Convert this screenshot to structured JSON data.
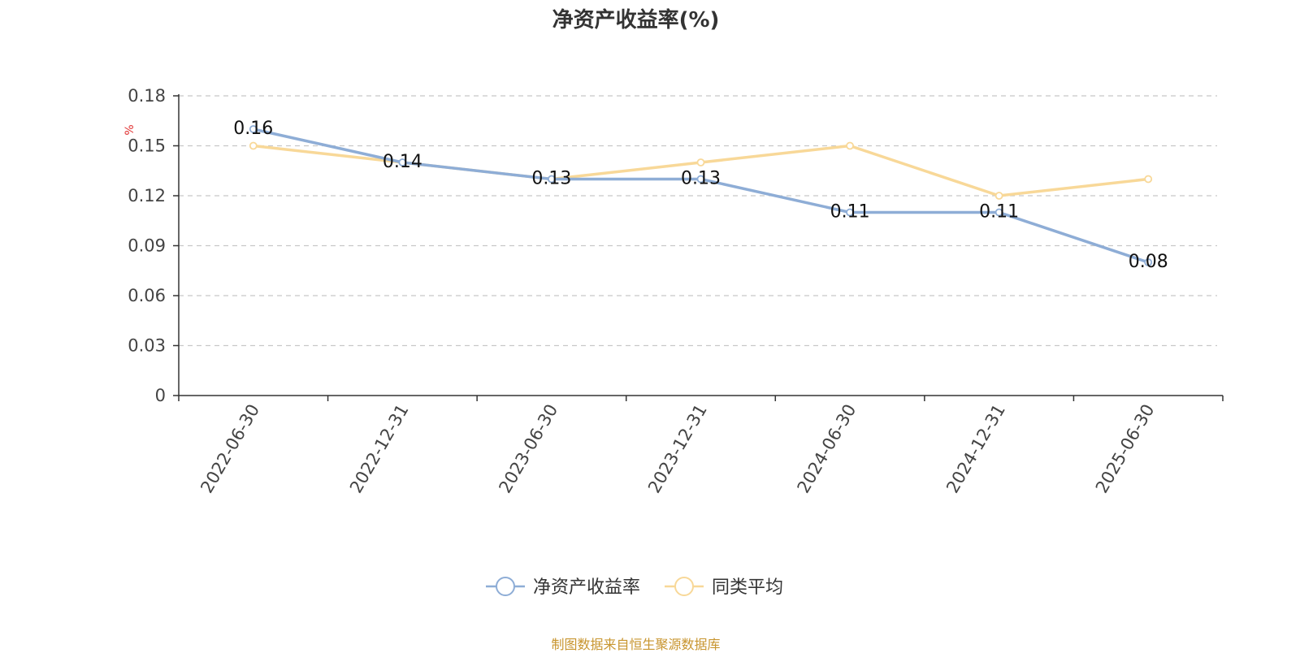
{
  "title": "净资产收益率(%)",
  "source_note": "制图数据来自恒生聚源数据库",
  "chart_data": {
    "type": "line",
    "title": "净资产收益率(%)",
    "xlabel": "",
    "ylabel": "%",
    "categories": [
      "2022-06-30",
      "2022-12-31",
      "2023-06-30",
      "2023-12-31",
      "2024-06-30",
      "2024-12-31",
      "2025-06-30"
    ],
    "ylim": [
      0,
      0.18
    ],
    "yticks": [
      "0",
      "0.03",
      "0.06",
      "0.09",
      "0.12",
      "0.15",
      "0.18"
    ],
    "grid": true,
    "legend_position": "bottom-center",
    "series": [
      {
        "name": "净资产收益率",
        "color": "#8eadd6",
        "values": [
          0.16,
          0.14,
          0.13,
          0.13,
          0.11,
          0.11,
          0.08
        ],
        "data_labels": [
          "0.16",
          "0.14",
          "0.13",
          "0.13",
          "0.11",
          "0.11",
          "0.08"
        ]
      },
      {
        "name": "同类平均",
        "color": "#f8d898",
        "values": [
          0.15,
          0.14,
          0.13,
          0.14,
          0.15,
          0.12,
          0.13
        ],
        "data_labels": []
      }
    ]
  }
}
